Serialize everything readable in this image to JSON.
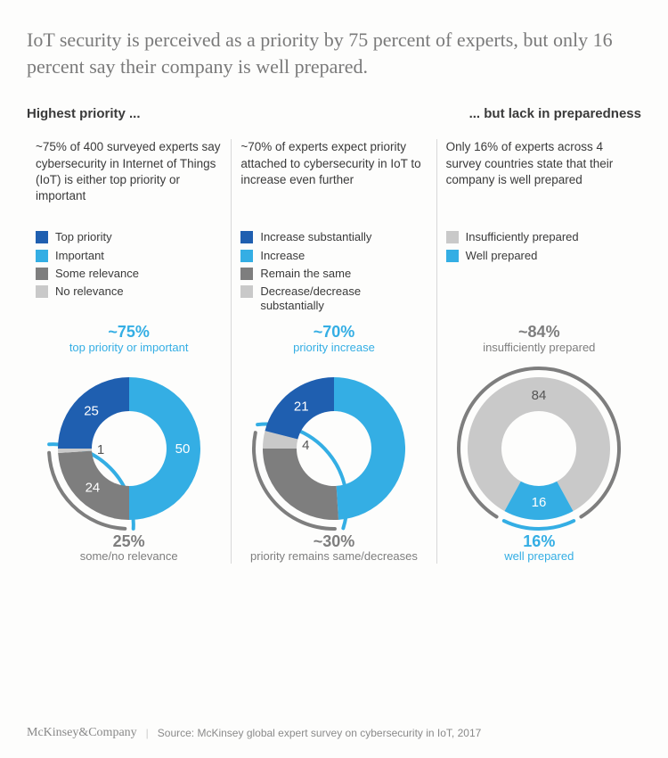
{
  "title": "IoT security is perceived as a priority by 75 percent of experts, but only 16 percent say their company is well prepared.",
  "subheaders": {
    "left": "Highest priority ...",
    "right": "... but lack in preparedness"
  },
  "colors": {
    "darkBlue": "#1f5fb0",
    "lightBlue": "#34aee4",
    "darkGray": "#7e7e7e",
    "lightGray": "#c9c9c9",
    "calloutBlue": "#34aee4",
    "calloutGray": "#7e7e7e",
    "textDark": "#3a3a3a",
    "divider": "#d8d8d8",
    "background": "#fdfdfc"
  },
  "donut_style": {
    "outer_radius": 80,
    "inner_radius": 42,
    "arc_radius": 90,
    "arc_stroke": 4,
    "seg_gap_deg": 0,
    "label_radius": 60,
    "label_fontsize": 15,
    "callout_pct_fontsize": 18,
    "callout_txt_fontsize": 13
  },
  "panels": [
    {
      "desc": "~75% of 400 surveyed experts say cybersecurity in Internet of Things (IoT) is either top priority or important",
      "legend": [
        {
          "label": "Top priority",
          "colorKey": "darkBlue"
        },
        {
          "label": "Important",
          "colorKey": "lightBlue"
        },
        {
          "label": "Some relevance",
          "colorKey": "darkGray"
        },
        {
          "label": "No relevance",
          "colorKey": "lightGray"
        }
      ],
      "segments": [
        {
          "value": 50,
          "colorKey": "lightBlue",
          "labelColor": "light"
        },
        {
          "value": 24,
          "colorKey": "darkGray",
          "labelColor": "light"
        },
        {
          "value": 1,
          "colorKey": "lightGray",
          "labelColor": "dark"
        },
        {
          "value": 25,
          "colorKey": "darkBlue",
          "labelColor": "light"
        }
      ],
      "topArc": {
        "startSeg": 3,
        "endSeg": 0,
        "colorKey": "lightBlue"
      },
      "bottomArc": {
        "startSeg": 1,
        "endSeg": 2,
        "colorKey": "darkGray"
      },
      "topCallout": {
        "pct": "~75%",
        "txt": "top priority or important",
        "colorKey": "calloutBlue"
      },
      "bottomCallout": {
        "pct": "25%",
        "txt": "some/no relevance",
        "colorKey": "calloutGray"
      }
    },
    {
      "desc": "~70% of experts expect priority attached to cybersecurity in IoT to increase even further",
      "legend": [
        {
          "label": "Increase substantially",
          "colorKey": "darkBlue"
        },
        {
          "label": "Increase",
          "colorKey": "lightBlue"
        },
        {
          "label": "Remain the same",
          "colorKey": "darkGray"
        },
        {
          "label": "Decrease/decrease substantially",
          "colorKey": "lightGray"
        }
      ],
      "segments": [
        {
          "value": 49,
          "colorKey": "lightBlue",
          "hideLabel": true,
          "labelColor": "light"
        },
        {
          "value": 26,
          "colorKey": "darkGray",
          "hideLabel": true,
          "labelColor": "light"
        },
        {
          "value": 4,
          "colorKey": "lightGray",
          "labelColor": "dark"
        },
        {
          "value": 21,
          "colorKey": "darkBlue",
          "labelColor": "light"
        }
      ],
      "topArc": {
        "startSeg": 3,
        "endSeg": 0,
        "colorKey": "lightBlue"
      },
      "bottomArc": {
        "startSeg": 1,
        "endSeg": 2,
        "colorKey": "darkGray"
      },
      "topCallout": {
        "pct": "~70%",
        "txt": "priority increase",
        "colorKey": "calloutBlue"
      },
      "bottomCallout": {
        "pct": "~30%",
        "txt": "priority remains same/decreases",
        "colorKey": "calloutGray"
      }
    },
    {
      "desc": "Only 16% of experts across 4 survey countries state that their company is well prepared",
      "legend": [
        {
          "label": "Insufficiently prepared",
          "colorKey": "lightGray"
        },
        {
          "label": "Well prepared",
          "colorKey": "lightBlue"
        }
      ],
      "segments": [
        {
          "value": 84,
          "colorKey": "lightGray",
          "labelColor": "dark",
          "startAngleOverride": -151.2
        },
        {
          "value": 16,
          "colorKey": "lightBlue",
          "labelColor": "light"
        }
      ],
      "topArc": {
        "startSeg": 0,
        "endSeg": 0,
        "colorKey": "darkGray"
      },
      "bottomArc": {
        "startSeg": 1,
        "endSeg": 1,
        "colorKey": "lightBlue"
      },
      "topCallout": {
        "pct": "~84%",
        "txt": "insufficiently prepared",
        "colorKey": "calloutGray"
      },
      "bottomCallout": {
        "pct": "16%",
        "txt": "well prepared",
        "colorKey": "calloutBlue"
      }
    }
  ],
  "footer": {
    "brand": "McKinsey&Company",
    "source": "Source: McKinsey global expert survey on cybersecurity in IoT, 2017"
  }
}
